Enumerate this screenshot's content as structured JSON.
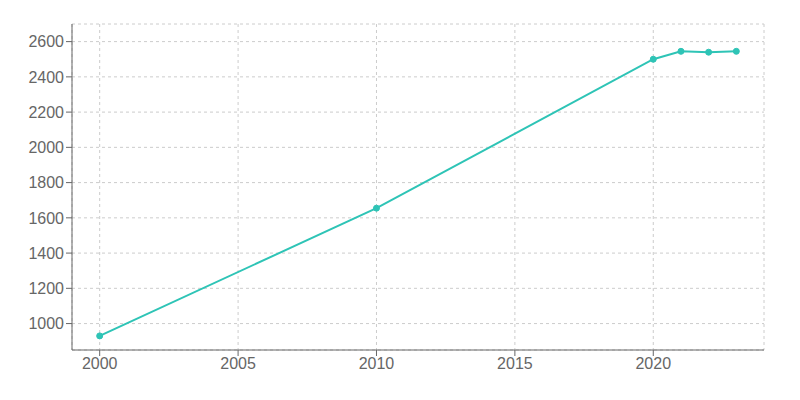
{
  "chart_data": {
    "type": "line",
    "x": [
      2000,
      2010,
      2020,
      2021,
      2022,
      2023
    ],
    "values": [
      930,
      1655,
      2500,
      2545,
      2540,
      2545
    ],
    "color": "#2ec4b6",
    "marker": "circle",
    "xlim": [
      1999,
      2024
    ],
    "ylim": [
      850,
      2700
    ],
    "xticks": [
      2000,
      2005,
      2010,
      2015,
      2020
    ],
    "yticks": [
      1000,
      1200,
      1400,
      1600,
      1800,
      2000,
      2200,
      2400,
      2600
    ],
    "grid": true
  }
}
